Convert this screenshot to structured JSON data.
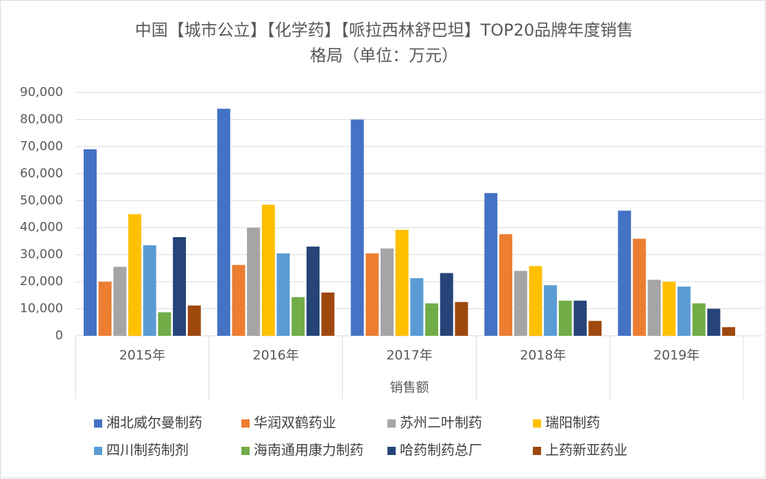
{
  "chart_data": {
    "type": "bar",
    "title": [
      "中国【城市公立】【化学药】【哌拉西林舒巴坦】TOP20品牌年度销售",
      "格局（单位：万元）"
    ],
    "x_label": "销售额",
    "categories": [
      "2015年",
      "2016年",
      "2017年",
      "2018年",
      "2019年"
    ],
    "series": [
      {
        "name": "湘北威尔曼制药",
        "color": "#4472c4",
        "values": [
          69000,
          84000,
          80000,
          52800,
          46300
        ]
      },
      {
        "name": "华润双鹤药业",
        "color": "#ed7d31",
        "values": [
          20000,
          26200,
          30500,
          37600,
          35900
        ]
      },
      {
        "name": "苏州二叶制药",
        "color": "#a5a5a5",
        "values": [
          25500,
          40000,
          32300,
          24000,
          20700
        ]
      },
      {
        "name": "瑞阳制药",
        "color": "#ffc000",
        "values": [
          45000,
          48500,
          39200,
          25800,
          20000
        ]
      },
      {
        "name": "四川制药制剂",
        "color": "#5b9bd5",
        "values": [
          33500,
          30500,
          21300,
          18700,
          18200
        ]
      },
      {
        "name": "海南通用康力制药",
        "color": "#70ad47",
        "values": [
          8700,
          14300,
          12000,
          13000,
          12000
        ]
      },
      {
        "name": "哈药制药总厂",
        "color": "#264478",
        "values": [
          36500,
          33000,
          23200,
          13000,
          10000
        ]
      },
      {
        "name": "上药新亚药业",
        "color": "#9e480e",
        "values": [
          11200,
          16000,
          12500,
          5500,
          3200
        ]
      }
    ],
    "ylim": [
      0,
      90000
    ],
    "yticks": [
      0,
      {
        "value": 10000,
        "label": "10,000"
      },
      {
        "value": 20000,
        "label": "20,000"
      },
      {
        "value": 30000,
        "label": "30,000"
      },
      {
        "value": 40000,
        "label": "40,000"
      },
      {
        "value": 50000,
        "label": "50,000"
      },
      {
        "value": 60000,
        "label": "60,000"
      },
      {
        "value": 70000,
        "label": "70,000"
      },
      {
        "value": 80000,
        "label": "80,000"
      },
      {
        "value": 90000,
        "label": "90,000"
      }
    ],
    "grid": true,
    "legend": "bottom"
  }
}
